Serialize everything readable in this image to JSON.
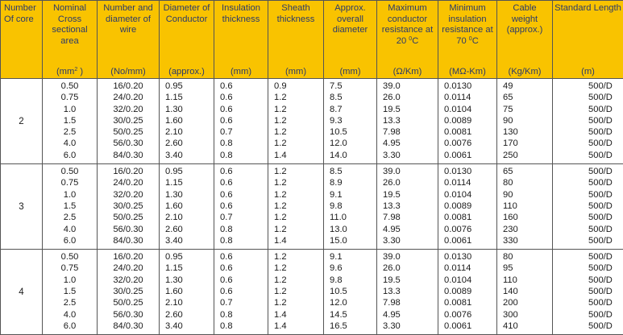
{
  "headers": {
    "core": "Number Of core",
    "area": "Nominal Cross sectional area",
    "area_unit": "(mm",
    "area_unit_sup": "2",
    "area_unit_end": " )",
    "wire": "Number and diameter of wire",
    "wire_unit": "(No/mm)",
    "cond": "Diameter of Conductor",
    "cond_unit": "(approx.)",
    "ins": "Insulation thickness",
    "ins_unit": "(mm)",
    "sheath": "Sheath thickness",
    "sheath_unit": "(mm)",
    "overall": "Approx. overall diameter",
    "overall_unit": "(mm)",
    "resist": "Maximum conductor resistance at 20",
    "resist_sup": "0",
    "resist_end": "C",
    "resist_unit": "(Ω/Km)",
    "insres": "Minimum insulation resistance at 70",
    "insres_sup": "0",
    "insres_end": "C",
    "insres_unit": "(MΩ-Km)",
    "weight": "Cable weight (approx.)",
    "weight_unit": "(Kg/Km)",
    "length": "Standard Length",
    "length_unit": "(m)"
  },
  "groups": [
    {
      "core": "2",
      "area": [
        "0.50",
        "0.75",
        "1.0",
        "1.5",
        "2.5",
        "4.0",
        "6.0"
      ],
      "wire": [
        "16/0.20",
        "24/0.20",
        "32/0.20",
        "30/0.25",
        "50/0.25",
        "56/0.30",
        "84/0.30"
      ],
      "cond": [
        "0.95",
        "1.15",
        "1.30",
        "1.60",
        "2.10",
        "2.60",
        "3.40"
      ],
      "ins": [
        "0.6",
        "0.6",
        "0.6",
        "0.6",
        "0.7",
        "0.8",
        "0.8"
      ],
      "sheath": [
        "0.9",
        "1.2",
        "1.2",
        "1.2",
        "1.2",
        "1.2",
        "1.4"
      ],
      "overall": [
        "7.5",
        "8.5",
        "8.7",
        "9.3",
        "10.5",
        "12.0",
        "14.0"
      ],
      "resist": [
        "39.0",
        "26.0",
        "19.5",
        "13.3",
        "7.98",
        "4.95",
        "3.30"
      ],
      "insres": [
        "0.0130",
        "0.0114",
        "0.0104",
        "0.0089",
        "0.0081",
        "0.0076",
        "0.0061"
      ],
      "weight": [
        "49",
        "65",
        "75",
        "90",
        "130",
        "170",
        "250"
      ],
      "length": [
        "500/D",
        "500/D",
        "500/D",
        "500/D",
        "500/D",
        "500/D",
        "500/D"
      ]
    },
    {
      "core": "3",
      "area": [
        "0.50",
        "0.75",
        "1.0",
        "1.5",
        "2.5",
        "4.0",
        "6.0"
      ],
      "wire": [
        "16/0.20",
        "24/0.20",
        "32/0.20",
        "30/0.25",
        "50/0.25",
        "56/0.30",
        "84/0.30"
      ],
      "cond": [
        "0.95",
        "1.15",
        "1.30",
        "1.60",
        "2.10",
        "2.60",
        "3.40"
      ],
      "ins": [
        "0.6",
        "0.6",
        "0.6",
        "0.6",
        "0.7",
        "0.8",
        "0.8"
      ],
      "sheath": [
        "1.2",
        "1.2",
        "1.2",
        "1.2",
        "1.2",
        "1.2",
        "1.4"
      ],
      "overall": [
        "8.5",
        "8.9",
        "9.1",
        "9.8",
        "11.0",
        "13.0",
        "15.0"
      ],
      "resist": [
        "39.0",
        "26.0",
        "19.5",
        "13.3",
        "7.98",
        "4.95",
        "3.30"
      ],
      "insres": [
        "0.0130",
        "0.0114",
        "0.0104",
        "0.0089",
        "0.0081",
        "0.0076",
        "0.0061"
      ],
      "weight": [
        "65",
        "80",
        "90",
        "110",
        "160",
        "230",
        "330"
      ],
      "length": [
        "500/D",
        "500/D",
        "500/D",
        "500/D",
        "500/D",
        "500/D",
        "500/D"
      ]
    },
    {
      "core": "4",
      "area": [
        "0.50",
        "0.75",
        "1.0",
        "1.5",
        "2.5",
        "4.0",
        "6.0"
      ],
      "wire": [
        "16/0.20",
        "24/0.20",
        "32/0.20",
        "30/0.25",
        "50/0.25",
        "56/0.30",
        "84/0.30"
      ],
      "cond": [
        "0.95",
        "1.15",
        "1.30",
        "1.60",
        "2.10",
        "2.60",
        "3.40"
      ],
      "ins": [
        "0.6",
        "0.6",
        "0.6",
        "0.6",
        "0.7",
        "0.8",
        "0.8"
      ],
      "sheath": [
        "1.2",
        "1.2",
        "1.2",
        "1.2",
        "1.2",
        "1.4",
        "1.4"
      ],
      "overall": [
        "9.1",
        "9.6",
        "9.8",
        "10.5",
        "12.0",
        "14.5",
        "16.5"
      ],
      "resist": [
        "39.0",
        "26.0",
        "19.5",
        "13.3",
        "7.98",
        "4.95",
        "3.30"
      ],
      "insres": [
        "0.0130",
        "0.0114",
        "0.0104",
        "0.0089",
        "0.0081",
        "0.0076",
        "0.0061"
      ],
      "weight": [
        "80",
        "95",
        "110",
        "140",
        "200",
        "300",
        "410"
      ],
      "length": [
        "500/D",
        "500/D",
        "500/D",
        "500/D",
        "500/D",
        "500/D",
        "500/D"
      ]
    }
  ]
}
